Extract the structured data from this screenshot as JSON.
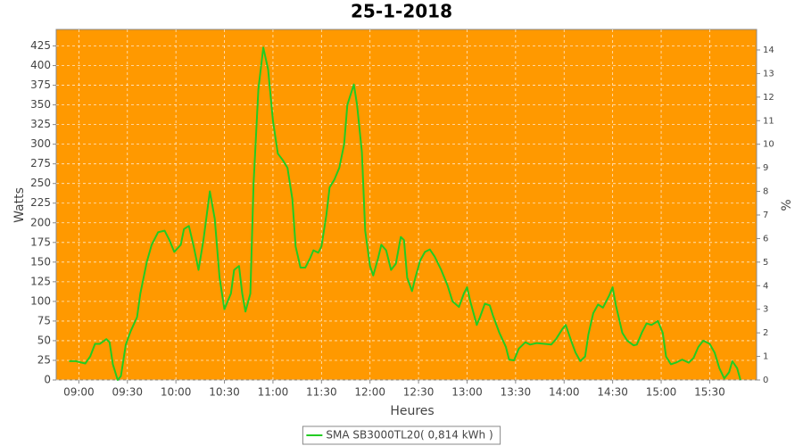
{
  "chart_data": {
    "type": "line",
    "title": "25-1-2018",
    "x_label": "Heures",
    "y_label": "Watts",
    "y2_label": "%",
    "x": [
      "08:54",
      "08:58",
      "09:04",
      "09:07",
      "09:10",
      "09:13",
      "09:17",
      "09:19",
      "09:21",
      "09:24",
      "09:26",
      "09:29",
      "09:32",
      "09:36",
      "09:38",
      "09:42",
      "09:45",
      "09:49",
      "09:53",
      "09:56",
      "09:59",
      "10:03",
      "10:05",
      "10:08",
      "10:11",
      "10:14",
      "10:17",
      "10:21",
      "10:24",
      "10:27",
      "10:30",
      "10:34",
      "10:36",
      "10:39",
      "10:41",
      "10:43",
      "10:46",
      "10:48",
      "10:51",
      "10:54",
      "10:57",
      "11:00",
      "11:03",
      "11:06",
      "11:09",
      "11:12",
      "11:14",
      "11:17",
      "11:20",
      "11:23",
      "11:25",
      "11:28",
      "11:30",
      "11:33",
      "11:35",
      "11:38",
      "11:41",
      "11:44",
      "11:46",
      "11:50",
      "11:52",
      "11:55",
      "11:57",
      "12:00",
      "12:02",
      "12:05",
      "12:07",
      "12:10",
      "12:13",
      "12:16",
      "12:19",
      "12:21",
      "12:23",
      "12:26",
      "12:28",
      "12:31",
      "12:34",
      "12:37",
      "12:40",
      "12:44",
      "12:48",
      "12:51",
      "12:55",
      "12:58",
      "13:00",
      "13:02",
      "13:06",
      "13:08",
      "13:11",
      "13:14",
      "13:16",
      "13:20",
      "13:24",
      "13:26",
      "13:29",
      "13:32",
      "13:36",
      "13:39",
      "13:43",
      "13:48",
      "13:52",
      "13:55",
      "13:59",
      "14:01",
      "14:04",
      "14:07",
      "14:10",
      "14:13",
      "14:15",
      "14:18",
      "14:21",
      "14:24",
      "14:28",
      "14:30",
      "14:32",
      "14:36",
      "14:39",
      "14:43",
      "14:45",
      "14:48",
      "14:51",
      "14:54",
      "14:58",
      "15:01",
      "15:03",
      "15:06",
      "15:09",
      "15:13",
      "15:17",
      "15:20",
      "15:23",
      "15:26",
      "15:30",
      "15:33",
      "15:36",
      "15:39",
      "15:42",
      "15:44",
      "15:47",
      "15:49"
    ],
    "series": [
      {
        "name": "SMA SB3000TL20( 0,814 kWh )",
        "color": "#22cc22",
        "values": [
          24,
          24,
          21,
          30,
          46,
          46,
          52,
          48,
          20,
          0,
          5,
          45,
          62,
          80,
          110,
          150,
          172,
          188,
          190,
          178,
          163,
          172,
          192,
          196,
          170,
          140,
          178,
          240,
          205,
          130,
          90,
          110,
          140,
          145,
          110,
          87,
          110,
          250,
          370,
          423,
          395,
          330,
          288,
          280,
          270,
          230,
          170,
          143,
          143,
          155,
          165,
          162,
          170,
          210,
          245,
          255,
          270,
          300,
          350,
          376,
          350,
          290,
          190,
          145,
          133,
          155,
          172,
          165,
          140,
          148,
          182,
          178,
          130,
          113,
          130,
          152,
          163,
          166,
          157,
          140,
          120,
          100,
          93,
          110,
          118,
          100,
          70,
          80,
          97,
          95,
          82,
          60,
          42,
          26,
          25,
          40,
          48,
          45,
          47,
          46,
          45,
          52,
          65,
          70,
          52,
          35,
          24,
          30,
          58,
          85,
          96,
          92,
          108,
          118,
          95,
          60,
          50,
          44,
          45,
          60,
          72,
          70,
          75,
          60,
          30,
          20,
          22,
          26,
          22,
          28,
          42,
          50,
          46,
          35,
          15,
          2,
          10,
          24,
          15,
          0
        ]
      }
    ],
    "xlim": [
      "08:46",
      "15:59"
    ],
    "xticks": [
      "09:00",
      "09:30",
      "10:00",
      "10:30",
      "11:00",
      "11:30",
      "12:00",
      "12:30",
      "13:00",
      "13:30",
      "14:00",
      "14:30",
      "15:00",
      "15:30"
    ],
    "ylim": [
      0,
      446
    ],
    "yticks": [
      0,
      25,
      50,
      75,
      100,
      125,
      150,
      175,
      200,
      225,
      250,
      275,
      300,
      325,
      350,
      375,
      400,
      425
    ],
    "y2lim": [
      0,
      14.87
    ],
    "y2ticks": [
      0,
      1,
      2,
      3,
      4,
      5,
      6,
      7,
      8,
      9,
      10,
      11,
      12,
      13,
      14
    ],
    "grid": true,
    "background": "#ff9900",
    "legend": "bottom"
  }
}
